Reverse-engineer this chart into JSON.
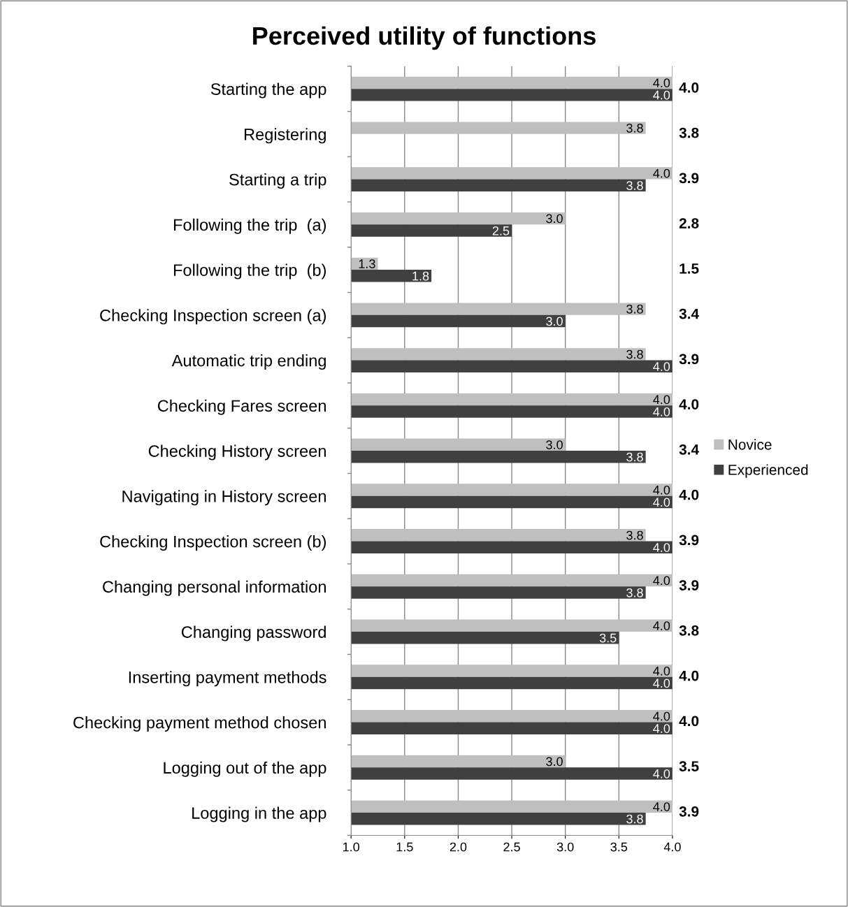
{
  "chart_data": {
    "type": "bar",
    "orientation": "horizontal",
    "title": "Perceived utility of functions",
    "categories": [
      "Starting the app",
      "Registering",
      "Starting a trip",
      "Following the trip  (a)",
      "Following the trip  (b)",
      "Checking Inspection screen (a)",
      "Automatic trip ending",
      "Checking Fares screen",
      "Checking History screen",
      "Navigating in History screen",
      "Checking Inspection screen (b)",
      "Changing personal information",
      "Changing password",
      "Inserting payment methods",
      "Checking payment method chosen",
      "Logging out of the app",
      "Logging in the app"
    ],
    "series": [
      {
        "name": "Novice",
        "color": "#bfbfbf",
        "values": [
          4.0,
          3.75,
          4.0,
          3.0,
          1.25,
          3.75,
          3.75,
          4.0,
          3.0,
          4.0,
          3.75,
          4.0,
          4.0,
          4.0,
          4.0,
          3.0,
          4.0
        ],
        "value_labels": [
          "4.0",
          "3.8",
          "4.0",
          "3.0",
          "1.3",
          "3.8",
          "3.8",
          "4.0",
          "3.0",
          "4.0",
          "3.8",
          "4.0",
          "4.0",
          "4.0",
          "4.0",
          "3.0",
          "4.0"
        ]
      },
      {
        "name": "Experienced",
        "color": "#404040",
        "values": [
          4.0,
          null,
          3.75,
          2.5,
          1.75,
          3.0,
          4.0,
          4.0,
          3.75,
          4.0,
          4.0,
          3.75,
          3.5,
          4.0,
          4.0,
          4.0,
          3.75
        ],
        "value_labels": [
          "4.0",
          null,
          "3.8",
          "2.5",
          "1.8",
          "3.0",
          "4.0",
          "4.0",
          "3.8",
          "4.0",
          "4.0",
          "3.8",
          "3.5",
          "4.0",
          "4.0",
          "4.0",
          "3.8"
        ]
      }
    ],
    "xlim": [
      1.0,
      4.0
    ],
    "xticks": [
      {
        "value": 1.0,
        "label": "1.0"
      },
      {
        "value": 1.5,
        "label": "1.5"
      },
      {
        "value": 2.0,
        "label": "2.0"
      },
      {
        "value": 2.5,
        "label": "2.5"
      },
      {
        "value": 3.0,
        "label": "3.0"
      },
      {
        "value": 3.5,
        "label": "3.5"
      },
      {
        "value": 4.0,
        "label": "4.0"
      }
    ],
    "grid": "x",
    "legend": "right",
    "annotations": [
      "4.0",
      "3.8",
      "3.9",
      "2.8",
      "1.5",
      "3.4",
      "3.9",
      "4.0",
      "3.4",
      "4.0",
      "3.9",
      "3.9",
      "3.8",
      "4.0",
      "4.0",
      "3.5",
      "3.9"
    ]
  }
}
